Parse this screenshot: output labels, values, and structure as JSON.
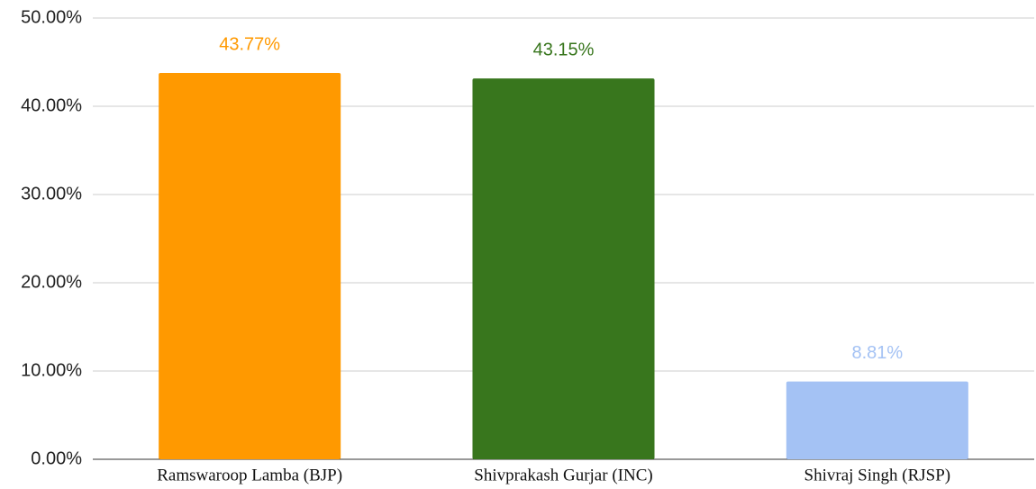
{
  "chart_data": {
    "type": "bar",
    "categories": [
      "Ramswaroop Lamba (BJP)",
      "Shivprakash Gurjar (INC)",
      "Shivraj Singh (RJSP)"
    ],
    "values": [
      43.77,
      43.15,
      8.81
    ],
    "value_labels": [
      "43.77%",
      "43.15%",
      "8.81%"
    ],
    "colors": [
      "#ff9900",
      "#38761d",
      "#a4c2f4"
    ],
    "ylim": [
      0,
      50
    ],
    "yticks": [
      {
        "value": 0,
        "label": "0.00%"
      },
      {
        "value": 10,
        "label": "10.00%"
      },
      {
        "value": 20,
        "label": "20.00%"
      },
      {
        "value": 30,
        "label": "30.00%"
      },
      {
        "value": 40,
        "label": "40.00%"
      },
      {
        "value": 50,
        "label": "50.00%"
      }
    ],
    "grid": true
  }
}
